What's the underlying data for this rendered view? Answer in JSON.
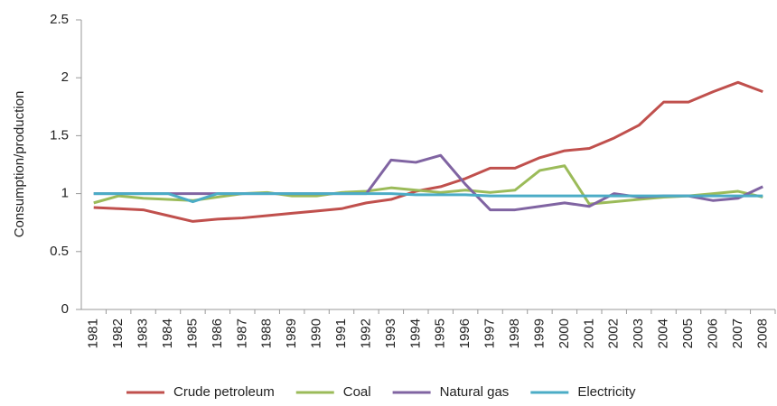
{
  "chart_data": {
    "type": "line",
    "y_label": "Consumption/production",
    "categories": [
      "1981",
      "1982",
      "1983",
      "1984",
      "1985",
      "1986",
      "1987",
      "1988",
      "1989",
      "1990",
      "1991",
      "1992",
      "1993",
      "1994",
      "1995",
      "1996",
      "1997",
      "1998",
      "1999",
      "2000",
      "2001",
      "2002",
      "2003",
      "2004",
      "2005",
      "2006",
      "2007",
      "2008"
    ],
    "series": [
      {
        "name": "Crude petroleum",
        "color": "#c0504d",
        "values": [
          0.88,
          0.87,
          0.86,
          0.81,
          0.76,
          0.78,
          0.79,
          0.81,
          0.83,
          0.85,
          0.87,
          0.92,
          0.95,
          1.02,
          1.06,
          1.13,
          1.22,
          1.22,
          1.31,
          1.37,
          1.39,
          1.48,
          1.59,
          1.79,
          1.79,
          1.88,
          1.96,
          1.88
        ]
      },
      {
        "name": "Coal",
        "color": "#9bbb59",
        "values": [
          0.92,
          0.98,
          0.96,
          0.95,
          0.94,
          0.97,
          1.0,
          1.01,
          0.98,
          0.98,
          1.01,
          1.02,
          1.05,
          1.03,
          1.01,
          1.03,
          1.01,
          1.03,
          1.2,
          1.24,
          0.91,
          0.93,
          0.95,
          0.97,
          0.98,
          1.0,
          1.02,
          0.97
        ]
      },
      {
        "name": "Natural gas",
        "color": "#8064a2",
        "values": [
          1.0,
          1.0,
          1.0,
          1.0,
          1.0,
          1.0,
          1.0,
          1.0,
          1.0,
          1.0,
          1.0,
          1.0,
          1.29,
          1.27,
          1.33,
          1.08,
          0.86,
          0.86,
          0.89,
          0.92,
          0.89,
          1.0,
          0.97,
          0.98,
          0.98,
          0.94,
          0.96,
          1.06
        ]
      },
      {
        "name": "Electricity",
        "color": "#4bacc6",
        "values": [
          1.0,
          1.0,
          1.0,
          1.0,
          0.93,
          1.0,
          1.0,
          1.0,
          1.0,
          1.0,
          1.0,
          1.0,
          1.0,
          0.99,
          0.99,
          0.99,
          0.98,
          0.98,
          0.98,
          0.98,
          0.98,
          0.98,
          0.98,
          0.98,
          0.98,
          0.98,
          0.98,
          0.98
        ]
      }
    ],
    "ylim": [
      0,
      2.5
    ],
    "yticks": [
      0,
      0.5,
      1,
      1.5,
      2,
      2.5
    ],
    "grid": false,
    "legend": "bottom"
  }
}
